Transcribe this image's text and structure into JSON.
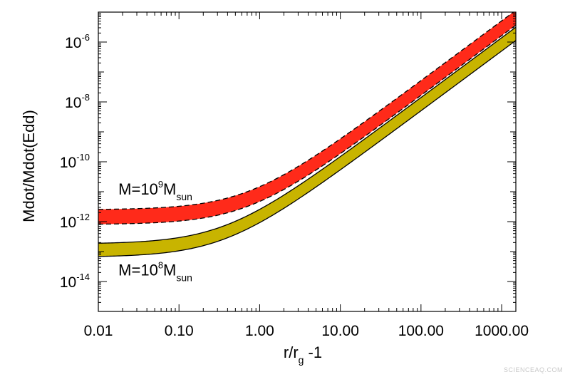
{
  "chart_data": {
    "type": "area",
    "title": "",
    "xlabel": "r/r_g -1",
    "xlabel_parts": {
      "main": "r/r",
      "sub": "g",
      "tail": " -1"
    },
    "ylabel": "Mdot/Mdot(Edd)",
    "xscale": "log",
    "yscale": "log",
    "xlim": [
      0.01,
      1500
    ],
    "ylim": [
      1e-15,
      1e-05
    ],
    "x_ticks": [
      {
        "value": 0.01,
        "label": "0.01"
      },
      {
        "value": 0.1,
        "label": "0.10"
      },
      {
        "value": 1,
        "label": "1.00"
      },
      {
        "value": 10,
        "label": "10.00"
      },
      {
        "value": 100,
        "label": "100.00"
      },
      {
        "value": 1000,
        "label": "1000.00"
      }
    ],
    "y_ticks": [
      {
        "exp": -6,
        "base": "10",
        "sup": "-6"
      },
      {
        "exp": -8,
        "base": "10",
        "sup": "-8"
      },
      {
        "exp": -10,
        "base": "10",
        "sup": "-10"
      },
      {
        "exp": -12,
        "base": "10",
        "sup": "-12"
      },
      {
        "exp": -14,
        "base": "10",
        "sup": "-14"
      }
    ],
    "series": [
      {
        "name": "M=10^9 M_sun",
        "fill": "#ff2a1a",
        "edge_style": "dashed",
        "band": "log10(y) = log10(1e-12) + 2*log10(1 + x/k)",
        "upper_y0": 2.5e-12,
        "lower_y0": 8e-13,
        "k": 0.7
      },
      {
        "name": "M=10^8 M_sun",
        "fill": "#c8b400",
        "edge_style": "solid",
        "band": "log10(y) = log10(1e-13) + 2*log10(1 + x/k)",
        "upper_y0": 1.8e-13,
        "lower_y0": 6.5e-14,
        "k": 0.36
      }
    ],
    "annotations": [
      {
        "target": "M=10^9 M_sun",
        "prefix": "M=10",
        "sup": "9",
        "mid": "M",
        "sub": "sun",
        "x": 0.04,
        "y": 8e-12
      },
      {
        "target": "M=10^8 M_sun",
        "prefix": "M=10",
        "sup": "8",
        "mid": "M",
        "sub": "sun",
        "x": 0.04,
        "y": 1.6e-14
      }
    ]
  },
  "watermark": "SCIENCEAQ.COM"
}
